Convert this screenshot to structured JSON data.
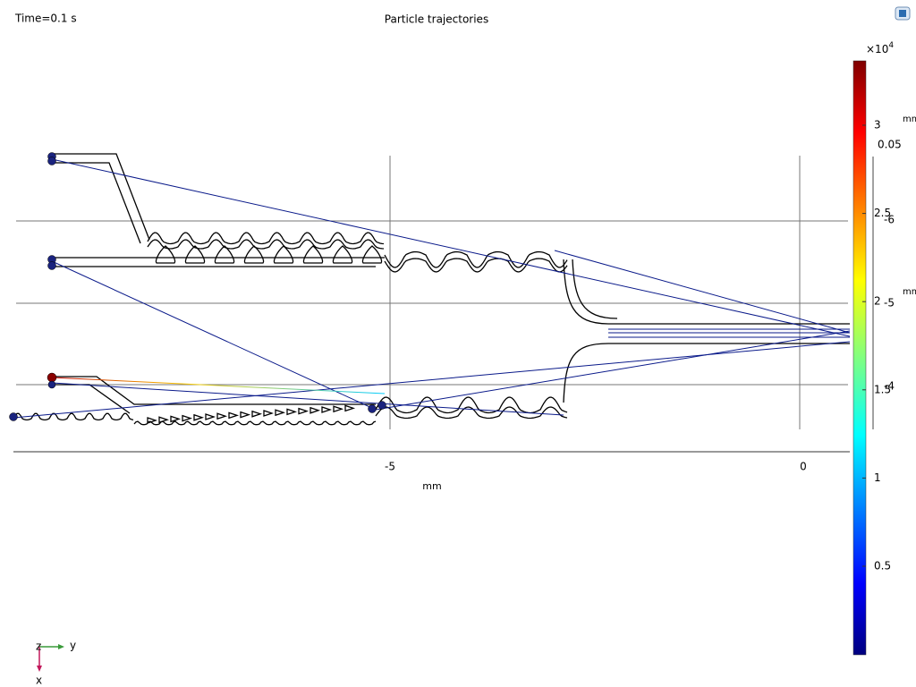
{
  "header": {
    "time": "Time=0.1 s",
    "title": "Particle trajectories"
  },
  "plot": {
    "x_axis": {
      "ticks": [
        "-5",
        "0"
      ],
      "label": "mm"
    }
  },
  "colorbar": {
    "exponent_base": "×10",
    "exponent_power": "4",
    "ticks": [
      "3",
      "2.5",
      "2",
      "1.5",
      "1",
      "0.5"
    ]
  },
  "overlay_axis": {
    "label_top": "mm",
    "value_top": "0.05",
    "ticks": [
      "-6",
      "-5",
      "-4"
    ],
    "label_mid": "mm"
  },
  "triad": {
    "z": "z",
    "y": "y",
    "x": "x"
  }
}
